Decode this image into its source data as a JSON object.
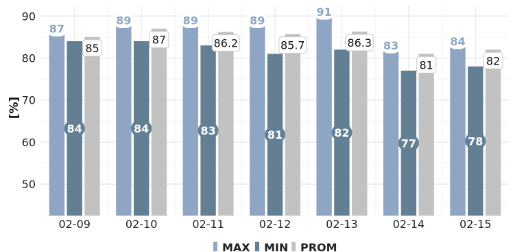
{
  "chart_data": {
    "type": "bar",
    "ylabel": "[%]",
    "ylim": [
      42.5,
      92.5
    ],
    "y_ticks": [
      "50",
      "60",
      "70",
      "80",
      "90"
    ],
    "categories": [
      "02-09",
      "02-10",
      "02-11",
      "02-12",
      "02-13",
      "02-14",
      "02-15"
    ],
    "series": [
      {
        "name": "MAX",
        "color": "#8ea6c3",
        "values": [
          87,
          89,
          89,
          89,
          91,
          83,
          84
        ],
        "labels": [
          "87",
          "89",
          "89",
          "89",
          "91",
          "83",
          "84"
        ]
      },
      {
        "name": "MIN",
        "color": "#637f94",
        "values": [
          84,
          84,
          83,
          81,
          82,
          77,
          78
        ],
        "labels": [
          "84",
          "84",
          "83",
          "81",
          "82",
          "77",
          "78"
        ]
      },
      {
        "name": "PROM",
        "color": "#c2c2c2",
        "values": [
          85,
          87,
          86.2,
          85.7,
          86.3,
          81,
          82
        ],
        "labels": [
          "85",
          "87",
          "86.2",
          "85.7",
          "86.3",
          "81",
          "82"
        ]
      }
    ],
    "grid": true,
    "legend_position": "bottom"
  }
}
